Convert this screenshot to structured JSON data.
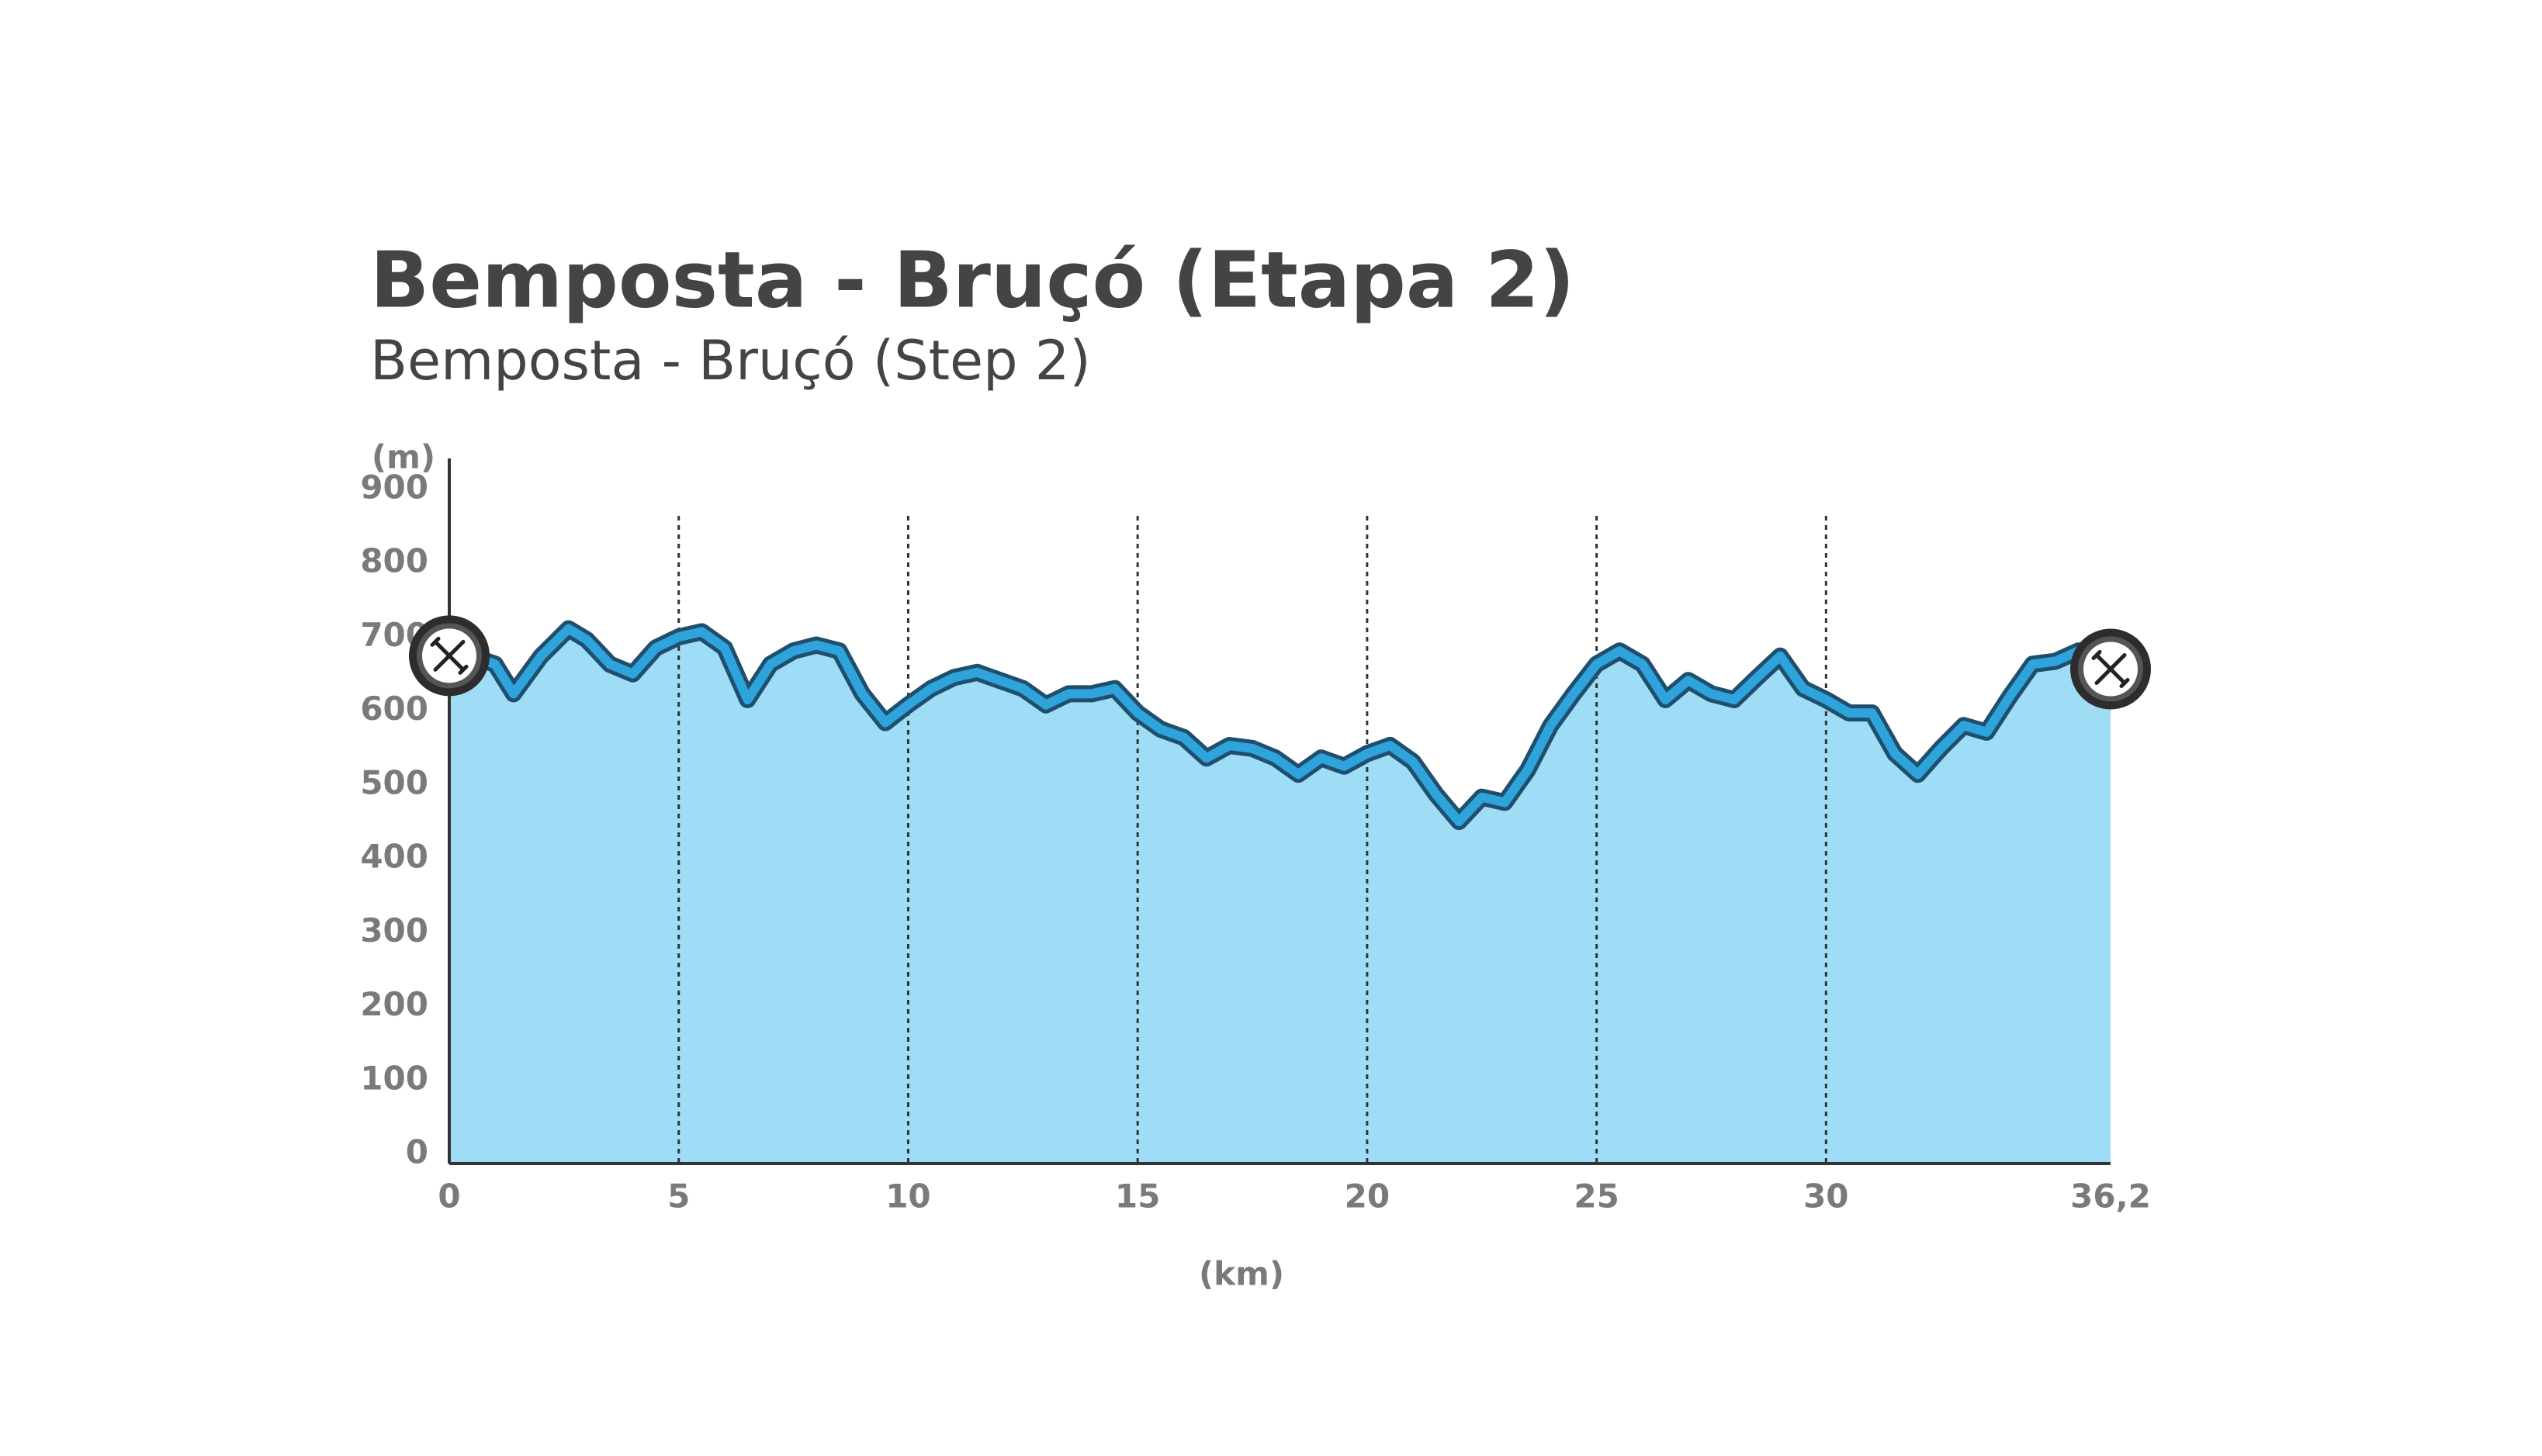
{
  "chart_data": {
    "type": "area",
    "title": "Bemposta - Bruçó (Etapa 2)",
    "subtitle": "Bemposta - Bruçó (Step 2)",
    "ylabel": "(m)",
    "xlabel": "(km)",
    "x": [
      0,
      1,
      1.4,
      2,
      2.6,
      3,
      3.5,
      4,
      4.5,
      5,
      5.5,
      6,
      6.5,
      7,
      7.5,
      8,
      8.5,
      9,
      9.5,
      10,
      10.5,
      11,
      11.5,
      12,
      12.5,
      13,
      13.5,
      14,
      14.5,
      15,
      15.5,
      16,
      16.5,
      17,
      17.5,
      18,
      18.5,
      19,
      19.5,
      20,
      20.5,
      21,
      21.5,
      22,
      22.5,
      23,
      23.5,
      24,
      24.5,
      25,
      25.5,
      26,
      26.5,
      27,
      27.5,
      28,
      28.5,
      29,
      29.5,
      30,
      30.5,
      31,
      31.5,
      32,
      32.5,
      33,
      33.5,
      34,
      34.5,
      35,
      35.5,
      36.2
    ],
    "values": [
      698,
      676,
      636,
      687,
      724,
      709,
      676,
      663,
      698,
      713,
      720,
      698,
      628,
      676,
      694,
      702,
      694,
      636,
      597,
      621,
      643,
      658,
      665,
      654,
      643,
      621,
      636,
      636,
      643,
      610,
      588,
      577,
      549,
      566,
      562,
      549,
      527,
      549,
      538,
      555,
      566,
      544,
      500,
      463,
      496,
      489,
      533,
      593,
      636,
      676,
      694,
      676,
      628,
      654,
      636,
      628,
      658,
      687,
      643,
      628,
      610,
      610,
      555,
      527,
      562,
      593,
      584,
      632,
      676,
      680,
      694,
      680
    ],
    "xlim": [
      0,
      36.2
    ],
    "ylim": [
      0,
      900
    ],
    "xticks": [
      0,
      5,
      10,
      15,
      20,
      25,
      30,
      {
        "value": 36.2,
        "label": "36,2"
      }
    ],
    "yticks": [
      0,
      100,
      200,
      300,
      400,
      500,
      600,
      700,
      800,
      900
    ],
    "grid": true,
    "color": "#2fa3dc",
    "fill": "#9fdcf5"
  }
}
